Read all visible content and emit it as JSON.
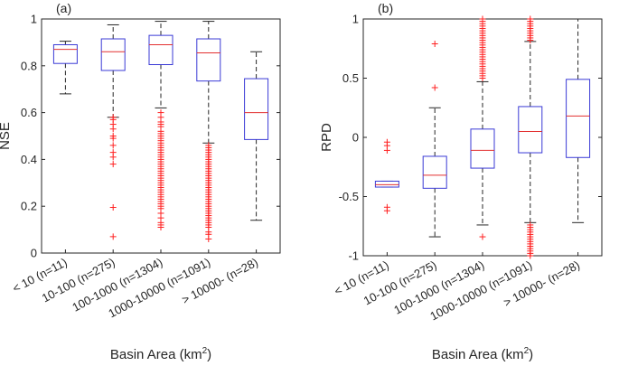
{
  "chart_data": [
    {
      "panel": "(a)",
      "type": "boxplot",
      "ylabel": "NSE",
      "xlabel_main": "Basin Area (km",
      "xlabel_sup": "2",
      "xlabel_close": ")",
      "ylim": [
        0,
        1
      ],
      "yticks": [
        0,
        0.2,
        0.4,
        0.6,
        0.8,
        1
      ],
      "ytick_labels": [
        "0",
        "0.2",
        "0.4",
        "0.6",
        "0.8",
        "1"
      ],
      "categories": [
        "< 10 (n=11)",
        "10-100 (n=275)",
        "100-1000 (n=1304)",
        "1000-10000 (n=1091)",
        "> 10000- (n=28)"
      ],
      "boxes": [
        {
          "whisker_low": 0.68,
          "q1": 0.81,
          "median": 0.87,
          "q3": 0.89,
          "whisker_high": 0.905,
          "outliers": []
        },
        {
          "whisker_low": 0.58,
          "q1": 0.78,
          "median": 0.86,
          "q3": 0.915,
          "whisker_high": 0.975,
          "outliers": [
            0.58,
            0.57,
            0.55,
            0.53,
            0.5,
            0.49,
            0.46,
            0.43,
            0.41,
            0.38,
            0.195,
            0.07
          ]
        },
        {
          "whisker_low": 0.62,
          "q1": 0.805,
          "median": 0.89,
          "q3": 0.93,
          "whisker_high": 0.99,
          "outliers": [
            0.6,
            0.58,
            0.56,
            0.55,
            0.54,
            0.52,
            0.51,
            0.5,
            0.49,
            0.48,
            0.47,
            0.46,
            0.45,
            0.44,
            0.43,
            0.42,
            0.41,
            0.4,
            0.39,
            0.38,
            0.37,
            0.36,
            0.35,
            0.34,
            0.33,
            0.32,
            0.31,
            0.3,
            0.29,
            0.28,
            0.27,
            0.26,
            0.25,
            0.24,
            0.23,
            0.22,
            0.21,
            0.2,
            0.19,
            0.17,
            0.15,
            0.13,
            0.12,
            0.11
          ]
        },
        {
          "whisker_low": 0.47,
          "q1": 0.735,
          "median": 0.855,
          "q3": 0.915,
          "whisker_high": 0.99,
          "outliers": [
            0.46,
            0.45,
            0.44,
            0.43,
            0.42,
            0.41,
            0.4,
            0.39,
            0.38,
            0.37,
            0.36,
            0.35,
            0.34,
            0.33,
            0.32,
            0.31,
            0.3,
            0.29,
            0.28,
            0.27,
            0.26,
            0.25,
            0.24,
            0.23,
            0.22,
            0.21,
            0.2,
            0.19,
            0.18,
            0.17,
            0.16,
            0.15,
            0.14,
            0.13,
            0.12,
            0.11,
            0.09,
            0.08,
            0.06
          ]
        },
        {
          "whisker_low": 0.14,
          "q1": 0.485,
          "median": 0.6,
          "q3": 0.745,
          "whisker_high": 0.86,
          "outliers": []
        }
      ]
    },
    {
      "panel": "(b)",
      "type": "boxplot",
      "ylabel": "RPD",
      "xlabel_main": "Basin Area (km",
      "xlabel_sup": "2",
      "xlabel_close": ")",
      "ylim": [
        -1,
        1
      ],
      "yticks": [
        -1,
        -0.5,
        0,
        0.5,
        1
      ],
      "ytick_labels": [
        "-1",
        "-0.5",
        "0",
        "0.5",
        "1"
      ],
      "categories": [
        "< 10 (n=11)",
        "10-100 (n=275)",
        "100-1000 (n=1304)",
        "1000-10000 (n=1091)",
        "> 10000- (n=28)"
      ],
      "boxes": [
        {
          "whisker_low": -0.42,
          "q1": -0.42,
          "median": -0.4,
          "q3": -0.37,
          "whisker_high": -0.37,
          "outliers": [
            -0.04,
            -0.07,
            -0.11,
            -0.59,
            -0.62
          ]
        },
        {
          "whisker_low": -0.84,
          "q1": -0.43,
          "median": -0.32,
          "q3": -0.16,
          "whisker_high": 0.25,
          "outliers": [
            0.79,
            0.42
          ]
        },
        {
          "whisker_low": -0.74,
          "q1": -0.26,
          "median": -0.11,
          "q3": 0.07,
          "whisker_high": 0.47,
          "outliers": [
            1.0,
            0.98,
            0.96,
            0.94,
            0.92,
            0.9,
            0.88,
            0.86,
            0.84,
            0.82,
            0.8,
            0.78,
            0.76,
            0.74,
            0.72,
            0.7,
            0.68,
            0.66,
            0.64,
            0.62,
            0.6,
            0.58,
            0.56,
            0.54,
            0.52,
            0.5,
            -0.84
          ]
        },
        {
          "whisker_low": -0.72,
          "q1": -0.13,
          "median": 0.05,
          "q3": 0.26,
          "whisker_high": 0.81,
          "outliers": [
            1.0,
            0.98,
            0.96,
            0.94,
            0.92,
            0.9,
            0.88,
            0.86,
            0.84,
            0.82,
            -0.74,
            -0.76,
            -0.78,
            -0.8,
            -0.82,
            -0.84,
            -0.86,
            -0.88,
            -0.9,
            -0.92,
            -0.94,
            -0.96,
            -0.98,
            -1.0
          ]
        },
        {
          "whisker_low": -0.72,
          "q1": -0.17,
          "median": 0.18,
          "q3": 0.49,
          "whisker_high": 1.0,
          "outliers": []
        }
      ]
    }
  ]
}
